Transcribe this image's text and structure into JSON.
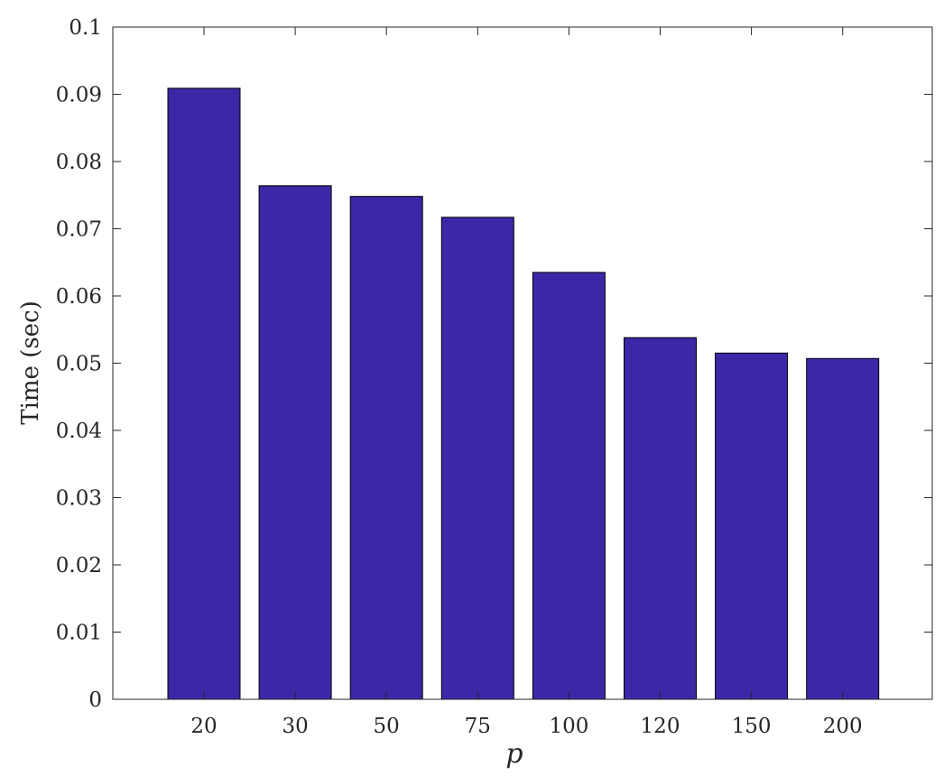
{
  "chart_data": {
    "type": "bar",
    "categories": [
      "20",
      "30",
      "50",
      "75",
      "100",
      "120",
      "150",
      "200"
    ],
    "values": [
      0.0909,
      0.0764,
      0.0748,
      0.0717,
      0.0635,
      0.0538,
      0.0515,
      0.0507
    ],
    "title": "",
    "xlabel": "p",
    "ylabel": "Time (sec)",
    "ylim": [
      0,
      0.1
    ],
    "yticks": [
      "0",
      "0.01",
      "0.02",
      "0.03",
      "0.04",
      "0.05",
      "0.06",
      "0.07",
      "0.08",
      "0.09",
      "0.1"
    ],
    "grid": false,
    "bar_color": "#3d27a6",
    "bar_edge_color": "#000000"
  }
}
